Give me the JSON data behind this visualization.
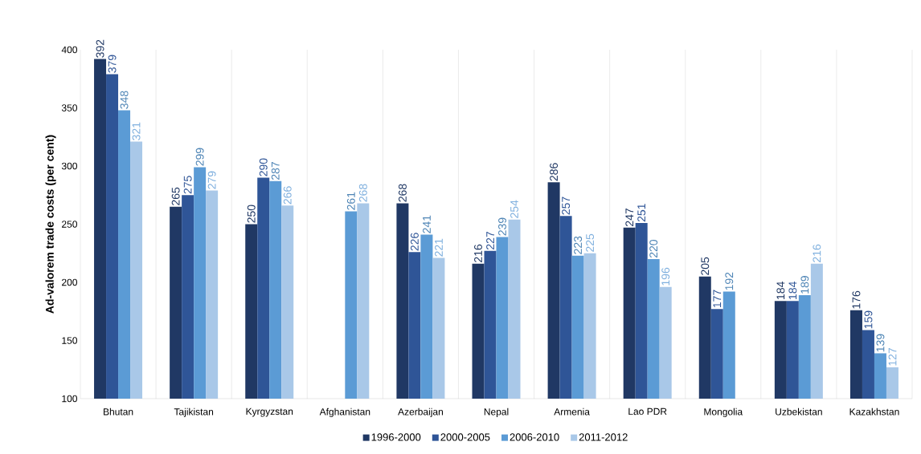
{
  "chart_data": {
    "type": "bar",
    "ylabel": "Ad-valorem trade costs (per cent)",
    "categories": [
      "Bhutan",
      "Tajikistan",
      "Kyrgyzstan",
      "Afghanistan",
      "Azerbaijan",
      "Nepal",
      "Armenia",
      "Lao PDR",
      "Mongolia",
      "Uzbekistan",
      "Kazakhstan"
    ],
    "series": [
      {
        "name": "1996-2000",
        "color": "#203864",
        "values": [
          392,
          265,
          250,
          null,
          268,
          216,
          286,
          247,
          205,
          184,
          176
        ]
      },
      {
        "name": "2000-2005",
        "color": "#2f5597",
        "values": [
          379,
          275,
          290,
          null,
          226,
          227,
          257,
          251,
          177,
          184,
          159
        ]
      },
      {
        "name": "2006-2010",
        "color": "#5b9bd5",
        "values": [
          348,
          299,
          287,
          261,
          241,
          239,
          223,
          220,
          192,
          189,
          139
        ]
      },
      {
        "name": "2011-2012",
        "color": "#a9c8e8",
        "values": [
          321,
          279,
          266,
          268,
          221,
          254,
          225,
          196,
          null,
          216,
          127
        ]
      }
    ],
    "ylim": [
      100,
      400
    ],
    "yticks": [
      100,
      150,
      200,
      250,
      300,
      350,
      400
    ],
    "grid": "x",
    "legend": "bottom",
    "data_labels": true
  }
}
